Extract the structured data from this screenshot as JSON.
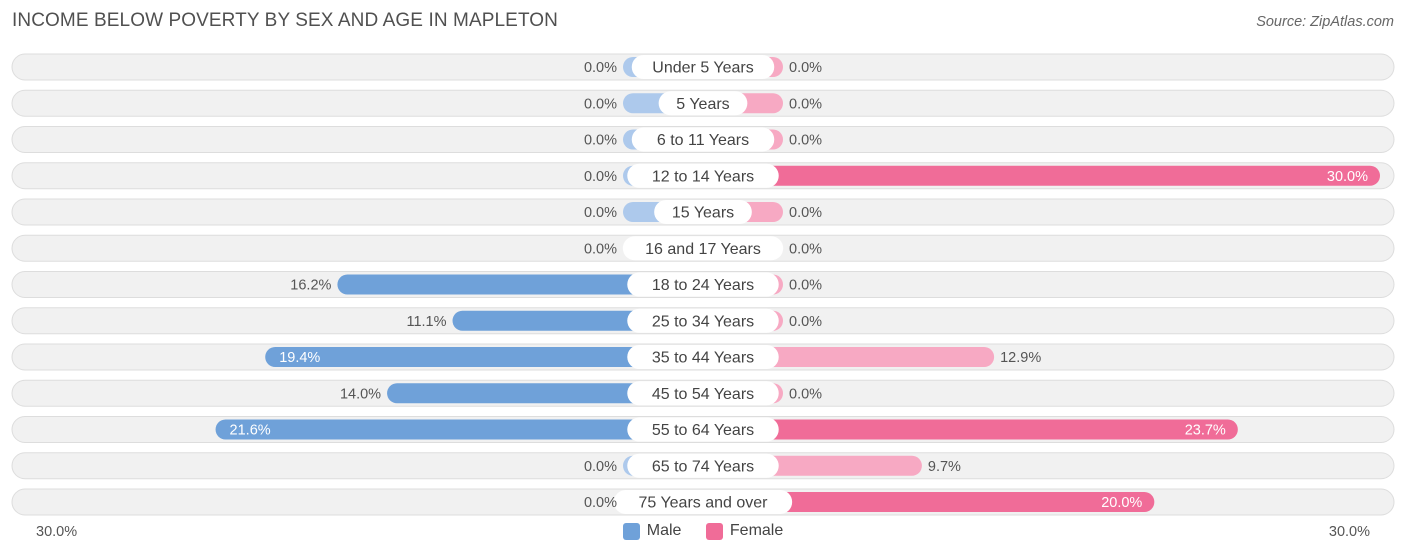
{
  "title": "INCOME BELOW POVERTY BY SEX AND AGE IN MAPLETON",
  "source": "Source: ZipAtlas.com",
  "axis": {
    "left_label": "30.0%",
    "right_label": "30.0%"
  },
  "legend": {
    "male": "Male",
    "female": "Female"
  },
  "colors": {
    "male_strong": "#6fa1d9",
    "male_light": "#adc9ec",
    "female_strong": "#f06c98",
    "female_light": "#f7a9c3",
    "track": "#f1f1f1",
    "track_border": "#dddddd"
  },
  "chart_data": {
    "type": "bar",
    "orientation": "horizontal-diverging",
    "max": 30.0,
    "categories": [
      "Under 5 Years",
      "5 Years",
      "6 to 11 Years",
      "12 to 14 Years",
      "15 Years",
      "16 and 17 Years",
      "18 to 24 Years",
      "25 to 34 Years",
      "35 to 44 Years",
      "45 to 54 Years",
      "55 to 64 Years",
      "65 to 74 Years",
      "75 Years and over"
    ],
    "series": [
      {
        "name": "Male",
        "values": [
          0.0,
          0.0,
          0.0,
          0.0,
          0.0,
          0.0,
          16.2,
          11.1,
          19.4,
          14.0,
          21.6,
          0.0,
          0.0
        ],
        "labels": [
          "0.0%",
          "0.0%",
          "0.0%",
          "0.0%",
          "0.0%",
          "0.0%",
          "16.2%",
          "11.1%",
          "19.4%",
          "14.0%",
          "21.6%",
          "0.0%",
          "0.0%"
        ]
      },
      {
        "name": "Female",
        "values": [
          0.0,
          0.0,
          0.0,
          30.0,
          0.0,
          0.0,
          0.0,
          0.0,
          12.9,
          0.0,
          23.7,
          9.7,
          20.0
        ],
        "labels": [
          "0.0%",
          "0.0%",
          "0.0%",
          "30.0%",
          "0.0%",
          "0.0%",
          "0.0%",
          "0.0%",
          "12.9%",
          "0.0%",
          "23.7%",
          "9.7%",
          "20.0%"
        ]
      }
    ],
    "legend_position": "bottom-center"
  }
}
